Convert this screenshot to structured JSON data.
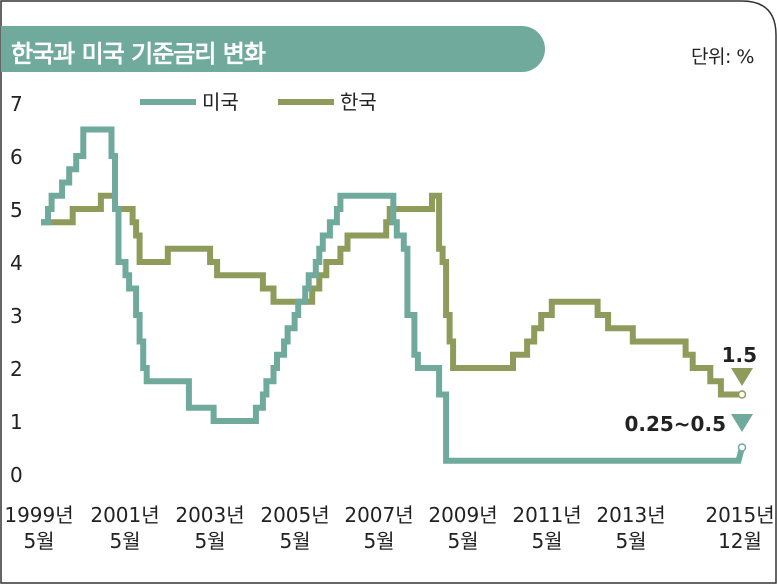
{
  "title": "한국과 미국 기준금리 변화",
  "unit": "단위: %",
  "colors": {
    "us": "#6faa9c",
    "korea": "#8e9b5b",
    "title_bg": "#6faa9c",
    "frame": "#333333"
  },
  "chart_data": {
    "type": "line",
    "title": "한국과 미국 기준금리 변화",
    "ylabel": "단위: %",
    "ylim": [
      0,
      7
    ],
    "yticks": [
      "0",
      "1",
      "2",
      "3",
      "4",
      "5",
      "6",
      "7"
    ],
    "xlim": [
      "1999-05",
      "2015-12"
    ],
    "xticks": [
      {
        "top": "1999년",
        "bottom": "5월"
      },
      {
        "top": "2001년",
        "bottom": "5월"
      },
      {
        "top": "2003년",
        "bottom": "5월"
      },
      {
        "top": "2005년",
        "bottom": "5월"
      },
      {
        "top": "2007년",
        "bottom": "5월"
      },
      {
        "top": "2009년",
        "bottom": "5월"
      },
      {
        "top": "2011년",
        "bottom": "5월"
      },
      {
        "top": "2013년",
        "bottom": "5월"
      },
      {
        "top": "2015년",
        "bottom": "12월"
      }
    ],
    "legend": "top-left",
    "grid": false,
    "series": [
      {
        "name": "미국",
        "key": "us",
        "end_label": "0.25~0.5",
        "points": [
          [
            "1999-05",
            4.75
          ],
          [
            "1999-07",
            5.0
          ],
          [
            "1999-08",
            5.25
          ],
          [
            "1999-11",
            5.5
          ],
          [
            "2000-01",
            5.75
          ],
          [
            "2000-03",
            6.0
          ],
          [
            "2000-05",
            6.5
          ],
          [
            "2001-01",
            6.0
          ],
          [
            "2001-02",
            5.0
          ],
          [
            "2001-03",
            4.0
          ],
          [
            "2001-05",
            3.75
          ],
          [
            "2001-06",
            3.5
          ],
          [
            "2001-08",
            3.0
          ],
          [
            "2001-09",
            2.5
          ],
          [
            "2001-10",
            2.0
          ],
          [
            "2001-11",
            1.75
          ],
          [
            "2002-11",
            1.25
          ],
          [
            "2003-06",
            1.0
          ],
          [
            "2004-06",
            1.25
          ],
          [
            "2004-08",
            1.5
          ],
          [
            "2004-09",
            1.75
          ],
          [
            "2004-11",
            2.0
          ],
          [
            "2004-12",
            2.25
          ],
          [
            "2005-02",
            2.5
          ],
          [
            "2005-03",
            2.75
          ],
          [
            "2005-05",
            3.0
          ],
          [
            "2005-06",
            3.25
          ],
          [
            "2005-08",
            3.5
          ],
          [
            "2005-09",
            3.75
          ],
          [
            "2005-11",
            4.0
          ],
          [
            "2005-12",
            4.25
          ],
          [
            "2006-01",
            4.5
          ],
          [
            "2006-03",
            4.75
          ],
          [
            "2006-05",
            5.0
          ],
          [
            "2006-06",
            5.25
          ],
          [
            "2007-09",
            4.75
          ],
          [
            "2007-10",
            4.5
          ],
          [
            "2007-12",
            4.25
          ],
          [
            "2008-01",
            3.0
          ],
          [
            "2008-03",
            2.25
          ],
          [
            "2008-04",
            2.0
          ],
          [
            "2008-10",
            1.5
          ],
          [
            "2008-12",
            0.25
          ],
          [
            "2015-11",
            0.25
          ],
          [
            "2015-12",
            0.5
          ]
        ]
      },
      {
        "name": "한국",
        "key": "korea",
        "end_label": "1.5",
        "points": [
          [
            "1999-05",
            4.75
          ],
          [
            "2000-02",
            5.0
          ],
          [
            "2000-10",
            5.25
          ],
          [
            "2001-02",
            5.0
          ],
          [
            "2001-07",
            4.75
          ],
          [
            "2001-08",
            4.5
          ],
          [
            "2001-09",
            4.0
          ],
          [
            "2002-05",
            4.25
          ],
          [
            "2003-05",
            4.0
          ],
          [
            "2003-07",
            3.75
          ],
          [
            "2004-08",
            3.5
          ],
          [
            "2004-11",
            3.25
          ],
          [
            "2005-10",
            3.5
          ],
          [
            "2005-12",
            3.75
          ],
          [
            "2006-02",
            4.0
          ],
          [
            "2006-06",
            4.25
          ],
          [
            "2006-08",
            4.5
          ],
          [
            "2007-07",
            4.75
          ],
          [
            "2007-08",
            5.0
          ],
          [
            "2008-08",
            5.25
          ],
          [
            "2008-10",
            4.25
          ],
          [
            "2008-11",
            4.0
          ],
          [
            "2008-12",
            3.0
          ],
          [
            "2009-01",
            2.5
          ],
          [
            "2009-02",
            2.0
          ],
          [
            "2010-07",
            2.25
          ],
          [
            "2010-11",
            2.5
          ],
          [
            "2011-01",
            2.75
          ],
          [
            "2011-03",
            3.0
          ],
          [
            "2011-06",
            3.25
          ],
          [
            "2012-07",
            3.0
          ],
          [
            "2012-10",
            2.75
          ],
          [
            "2013-05",
            2.5
          ],
          [
            "2014-08",
            2.25
          ],
          [
            "2014-10",
            2.0
          ],
          [
            "2015-03",
            1.75
          ],
          [
            "2015-06",
            1.5
          ],
          [
            "2015-12",
            1.5
          ]
        ]
      }
    ]
  }
}
